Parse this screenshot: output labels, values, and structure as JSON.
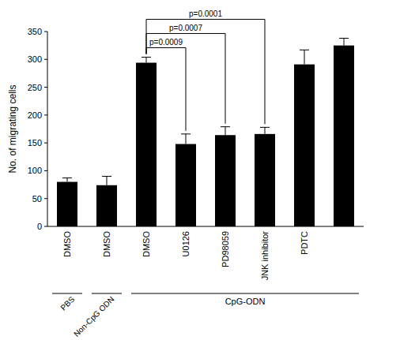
{
  "chart_data": {
    "type": "bar",
    "y_label": "No. of migrating cells",
    "categories": [
      "DMSO",
      "DMSO",
      "DMSO",
      "U0126",
      "PD98059",
      "JNK inhibitor",
      "PDTC",
      null
    ],
    "values": [
      80,
      74,
      294,
      148,
      164,
      166,
      291,
      325
    ],
    "errors": [
      7,
      16,
      10,
      18,
      15,
      12,
      26,
      13
    ],
    "color": "#000000",
    "ylim": [
      0,
      350
    ],
    "yticks": [
      0,
      50,
      100,
      150,
      200,
      250,
      300,
      350
    ],
    "groups": [
      {
        "label": "PBS",
        "start": 0,
        "end": 0
      },
      {
        "label": "Non-CpG ODN",
        "start": 1,
        "end": 1
      },
      {
        "label": "CpG-ODN",
        "start": 2,
        "end": 7
      }
    ],
    "annotations": [
      {
        "label": "p=0.0009",
        "from": 2,
        "to": 3
      },
      {
        "label": "p=0.0007",
        "from": 2,
        "to": 4
      },
      {
        "label": "p=0.0001",
        "from": 2,
        "to": 5
      }
    ]
  }
}
